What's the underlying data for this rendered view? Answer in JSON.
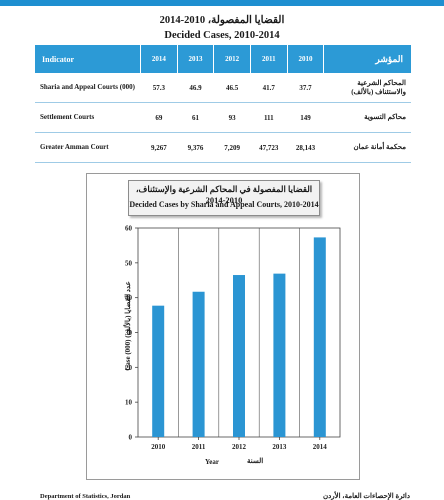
{
  "header": {
    "title_ar": "القضايا المفصولة، 2010-2014",
    "title_en": "Decided Cases, 2010-2014"
  },
  "table": {
    "col_indicator": "Indicator",
    "col_ar": "المؤشر",
    "years": [
      "2014",
      "2013",
      "2012",
      "2011",
      "2010"
    ],
    "rows": [
      {
        "label_en": "Sharia and Appeal Courts (000)",
        "label_ar": "المحاكم الشرعية والاستئناف (بالألف)",
        "values": [
          "57.3",
          "46.9",
          "46.5",
          "41.7",
          "37.7"
        ]
      },
      {
        "label_en": "Settlement Courts",
        "label_ar": "محاكم التسوية",
        "values": [
          "69",
          "61",
          "93",
          "111",
          "149"
        ]
      },
      {
        "label_en": "Greater Amman Court",
        "label_ar": "محكمة أمانة عمان",
        "values": [
          "9,267",
          "9,376",
          "7,209",
          "47,723",
          "28,143"
        ]
      }
    ]
  },
  "chart": {
    "title_ar": "القضايا المفصولة في المحاكم الشرعية والإستئناف، 2010-2014",
    "title_en": "Decided Cases by Sharia and Appeal Courts, 2010-2014",
    "ylabel_ar": "عدد القضايا (بالألف)",
    "ylabel_en": "Case (000)",
    "xlabel_en": "Year",
    "xlabel_ar": "السنة"
  },
  "chart_data": {
    "type": "bar",
    "categories": [
      "2010",
      "2011",
      "2012",
      "2013",
      "2014"
    ],
    "values": [
      37.7,
      41.7,
      46.5,
      46.9,
      57.3
    ],
    "title": "Decided Cases by Sharia and Appeal Courts, 2010-2014",
    "xlabel": "Year",
    "ylabel": "Case (000)",
    "ylim": [
      0,
      60
    ],
    "yticks": [
      "0",
      "10",
      "20",
      "30",
      "40",
      "50",
      "60"
    ],
    "grid": "vertical",
    "bar_color": "#2b95d3"
  },
  "footer": {
    "left": "Department of Statistics, Jordan",
    "right": "دائرة الإحصاءات العامة، الأردن"
  }
}
